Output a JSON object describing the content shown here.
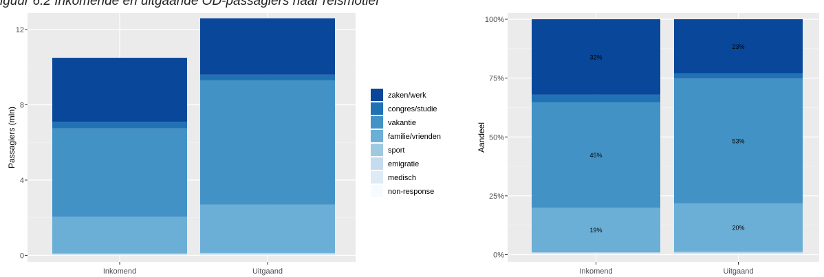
{
  "caption": "iguur 6.2 Inkomende en uitgaande OD-passagiers naar reismotief",
  "colors": {
    "panel_bg": "#EBEBEB",
    "grid": "#FFFFFF",
    "axis_text": "#4D4D4D",
    "title_text": "#000000"
  },
  "chart_data": [
    {
      "type": "bar",
      "stacked": true,
      "ylabel": "Passagiers (mln)",
      "ylim": [
        0,
        12.6
      ],
      "y_ticks": [
        {
          "value": 0,
          "label": "0"
        },
        {
          "value": 4,
          "label": "4"
        },
        {
          "value": 8,
          "label": "8"
        },
        {
          "value": 12,
          "label": "12"
        }
      ],
      "categories": [
        "Inkomend",
        "Uitgaand"
      ],
      "series": [
        {
          "name": "non-response",
          "color": "#F7FBFF",
          "values": [
            0.01,
            0.01
          ]
        },
        {
          "name": "medisch",
          "color": "#DEEBF7",
          "values": [
            0.04,
            0.05
          ]
        },
        {
          "name": "emigratie",
          "color": "#C6DBEF",
          "values": [
            0.03,
            0.04
          ]
        },
        {
          "name": "sport",
          "color": "#9ECAE1",
          "values": [
            0.02,
            0.03
          ]
        },
        {
          "name": "familie/vrienden",
          "color": "#6BAED6",
          "values": [
            1.95,
            2.57
          ]
        },
        {
          "name": "vakantie",
          "color": "#4292C6",
          "values": [
            4.7,
            6.6
          ]
        },
        {
          "name": "congres/studie",
          "color": "#2171B5",
          "values": [
            0.35,
            0.3
          ]
        },
        {
          "name": "zaken/werk",
          "color": "#08479A",
          "values": [
            3.4,
            3.0
          ]
        }
      ],
      "grid": true
    },
    {
      "type": "bar",
      "stacked": true,
      "ylabel": "Aandeel",
      "ylim": [
        0,
        100
      ],
      "y_ticks": [
        {
          "value": 0,
          "label": "0%"
        },
        {
          "value": 25,
          "label": "25%"
        },
        {
          "value": 50,
          "label": "50%"
        },
        {
          "value": 75,
          "label": "75%"
        },
        {
          "value": 100,
          "label": "100%"
        }
      ],
      "categories": [
        "Inkomend",
        "Uitgaand"
      ],
      "series": [
        {
          "name": "non-response",
          "color": "#F7FBFF",
          "values": [
            0.2,
            0.2
          ]
        },
        {
          "name": "medisch",
          "color": "#DEEBF7",
          "values": [
            0.4,
            0.4
          ]
        },
        {
          "name": "emigratie",
          "color": "#C6DBEF",
          "values": [
            0.3,
            0.3
          ]
        },
        {
          "name": "sport",
          "color": "#9ECAE1",
          "values": [
            0.1,
            0.4
          ]
        },
        {
          "name": "familie/vrienden",
          "color": "#6BAED6",
          "values": [
            19,
            20.5
          ]
        },
        {
          "name": "vakantie",
          "color": "#4292C6",
          "values": [
            44.7,
            53
          ]
        },
        {
          "name": "congres/studie",
          "color": "#2171B5",
          "values": [
            3.3,
            2.2
          ]
        },
        {
          "name": "zaken/werk",
          "color": "#08479A",
          "values": [
            32,
            23
          ]
        }
      ],
      "data_labels": [
        {
          "series": "familie/vrienden",
          "labels": [
            "19%",
            "20%"
          ]
        },
        {
          "series": "vakantie",
          "labels": [
            "45%",
            "53%"
          ]
        },
        {
          "series": "zaken/werk",
          "labels": [
            "32%",
            "23%"
          ]
        }
      ],
      "grid": true
    }
  ],
  "legend": {
    "placement": "between-panels",
    "items": [
      {
        "label": "zaken/werk",
        "color": "#08479A"
      },
      {
        "label": "congres/studie",
        "color": "#2171B5"
      },
      {
        "label": "vakantie",
        "color": "#4292C6"
      },
      {
        "label": "familie/vrienden",
        "color": "#6BAED6"
      },
      {
        "label": "sport",
        "color": "#9ECAE1"
      },
      {
        "label": "emigratie",
        "color": "#C6DBEF"
      },
      {
        "label": "medisch",
        "color": "#DEEBF7"
      },
      {
        "label": "non-response",
        "color": "#F7FBFF"
      }
    ]
  }
}
